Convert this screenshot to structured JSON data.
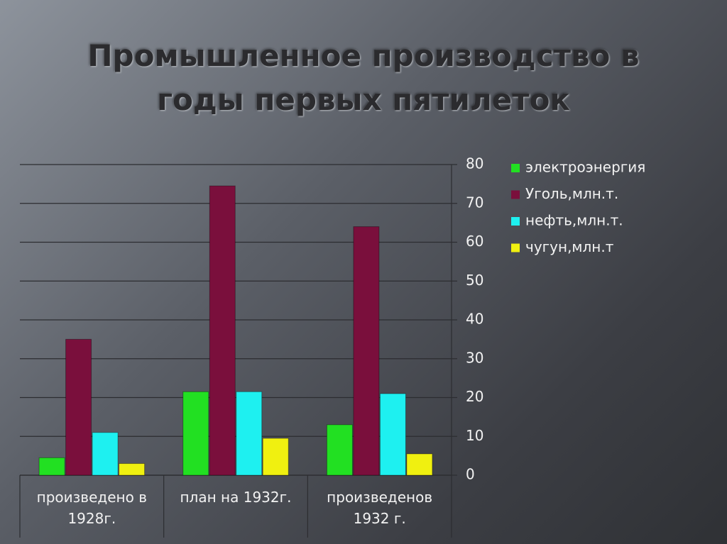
{
  "chart_data": {
    "type": "bar",
    "title": "Промышленное производство в годы первых пятилеток",
    "categories": [
      "произведено в 1928г.",
      "план на 1932г.",
      "произведенов 1932 г."
    ],
    "series": [
      {
        "name": "электроэнергия",
        "color": "#22e022",
        "values": [
          4.5,
          21.5,
          13
        ]
      },
      {
        "name": "Уголь,млн.т.",
        "color": "#7a0f3c",
        "values": [
          35,
          74.5,
          64
        ]
      },
      {
        "name": "нефть,млн.т.",
        "color": "#1ef0f0",
        "values": [
          11,
          21.5,
          21
        ]
      },
      {
        "name": "чугун,млн.т",
        "color": "#f0f010",
        "values": [
          3,
          9.5,
          5.5
        ]
      }
    ],
    "ylim": [
      0,
      80
    ],
    "yticks": [
      0,
      10,
      20,
      30,
      40,
      50,
      60,
      70,
      80
    ],
    "grid": true,
    "legend": "right"
  }
}
